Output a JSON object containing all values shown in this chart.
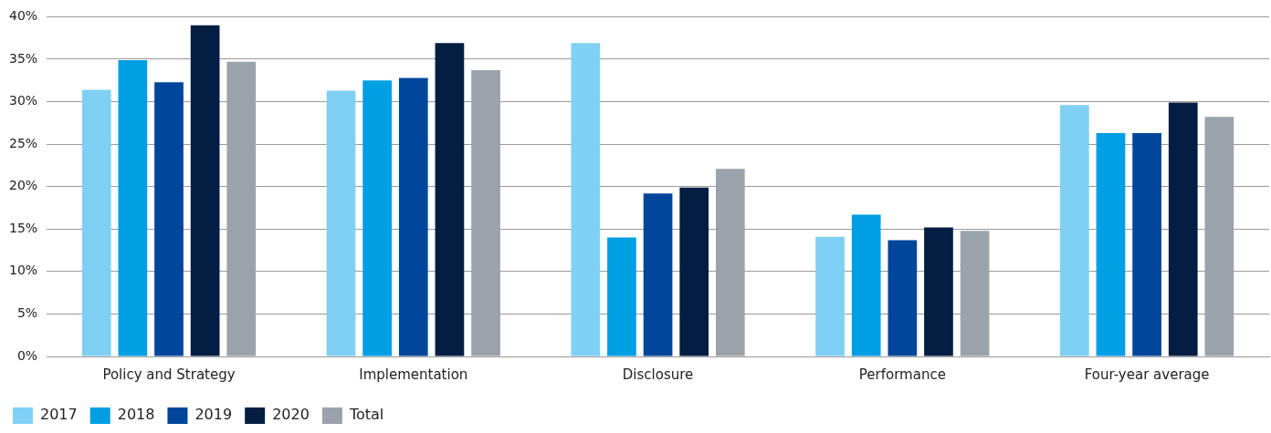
{
  "chart_data": {
    "type": "bar",
    "categories": [
      "Policy and Strategy",
      "Implementation",
      "Disclosure",
      "Performance",
      "Four-year average"
    ],
    "series": [
      {
        "name": "2017",
        "color": "#7fd0f4",
        "values": [
          31.4,
          31.3,
          36.9,
          14.1,
          29.6
        ]
      },
      {
        "name": "2018",
        "color": "#009ee3",
        "values": [
          34.9,
          32.5,
          14.0,
          16.7,
          26.3
        ]
      },
      {
        "name": "2019",
        "color": "#00469b",
        "values": [
          32.3,
          32.8,
          19.2,
          13.7,
          26.3
        ]
      },
      {
        "name": "2020",
        "color": "#041e42",
        "values": [
          39.0,
          36.9,
          19.9,
          15.2,
          29.9
        ]
      },
      {
        "name": "Total",
        "color": "#9aa3ab",
        "values": [
          34.7,
          33.7,
          22.1,
          14.8,
          28.2
        ]
      }
    ],
    "ylim": [
      0,
      40
    ],
    "yticks": [
      {
        "value": 0,
        "label": "0%"
      },
      {
        "value": 5,
        "label": "5%"
      },
      {
        "value": 10,
        "label": "10%"
      },
      {
        "value": 15,
        "label": "15%"
      },
      {
        "value": 20,
        "label": "20%"
      },
      {
        "value": 25,
        "label": "25%"
      },
      {
        "value": 30,
        "label": "30%"
      },
      {
        "value": 35,
        "label": "35%"
      },
      {
        "value": 40,
        "label": "40%"
      }
    ],
    "grid": "y",
    "legend": "bottom left"
  }
}
